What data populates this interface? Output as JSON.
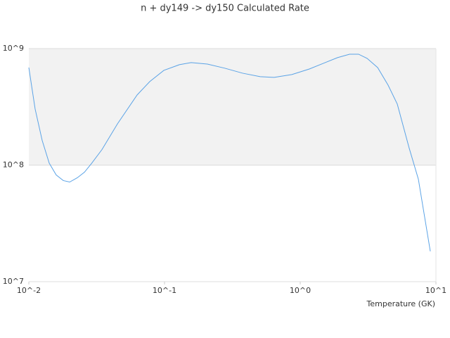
{
  "chart_data": {
    "type": "line",
    "title": "n + dy149 -> dy150 Calculated Rate",
    "x_label": "Temperature (GK)",
    "x": [
      0.01,
      0.01113,
      0.01254,
      0.01413,
      0.0159,
      0.01795,
      0.02,
      0.0228,
      0.0257,
      0.0289,
      0.0346,
      0.045,
      0.0628,
      0.0778,
      0.0988,
      0.1285,
      0.157,
      0.207,
      0.279,
      0.376,
      0.507,
      0.643,
      0.867,
      1.167,
      1.48,
      1.88,
      2.31,
      2.69,
      3.11,
      3.72,
      4.44,
      5.19,
      6.35,
      7.42,
      9.09
    ],
    "series": [
      {
        "name": "n + dy149 -> dy150",
        "color": "#5ba3e6",
        "values": [
          687000000,
          303000000,
          163000000,
          104000000,
          82400000,
          73700000,
          71600000,
          78000000,
          87000000,
          103000000,
          136000000,
          226000000,
          400000000,
          521000000,
          650000000,
          727000000,
          758000000,
          736000000,
          678000000,
          615000000,
          574000000,
          566000000,
          599000000,
          668000000,
          747000000,
          836000000,
          895000000,
          895000000,
          824000000,
          687000000,
          486000000,
          334000000,
          140000000,
          75900000,
          18200000
        ]
      }
    ],
    "xlim": [
      0.01,
      10
    ],
    "ylim": [
      10000000,
      1000000000
    ],
    "xlog": true,
    "ylog": true,
    "xticks": [
      {
        "value": 0.01,
        "label": "10^-2"
      },
      {
        "value": 0.1,
        "label": "10^-1"
      },
      {
        "value": 1,
        "label": "10^0"
      },
      {
        "value": 10,
        "label": "10^1"
      }
    ],
    "yticks": [
      {
        "value": 10000000,
        "label": "10^7"
      },
      {
        "value": 100000000,
        "label": "10^8"
      },
      {
        "value": 1000000000,
        "label": "10^9"
      }
    ],
    "grid": true,
    "alternate_bands": true
  }
}
